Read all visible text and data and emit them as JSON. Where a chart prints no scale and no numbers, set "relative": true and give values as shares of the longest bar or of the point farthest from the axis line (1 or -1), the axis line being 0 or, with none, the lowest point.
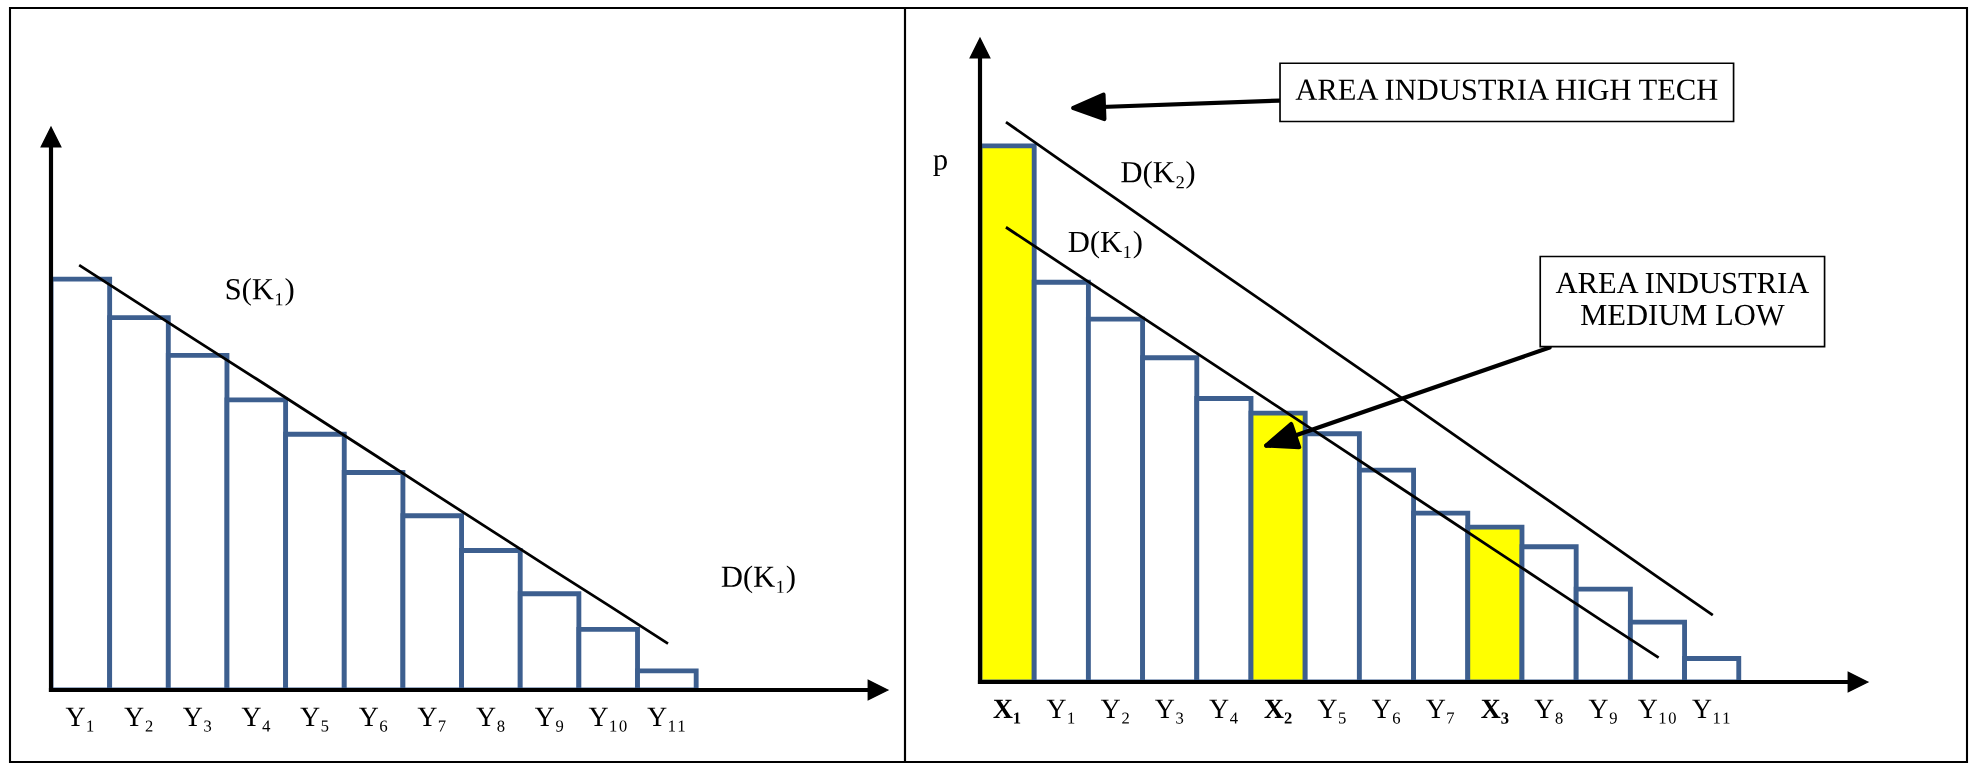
{
  "chart_data": [
    {
      "type": "bar",
      "relative": true,
      "categories": [
        "Y₁",
        "Y₂",
        "Y₃",
        "Y₄",
        "Y₅",
        "Y₆",
        "Y₇",
        "Y₈",
        "Y₉",
        "Y₁₀",
        "Y₁₁"
      ],
      "series": [
        {
          "color": "#3d5f8f",
          "colors": [
            "#ffffff",
            "#ffffff",
            "#ffffff",
            "#ffffff",
            "#ffffff",
            "#ffffff",
            "#ffffff",
            "#ffffff",
            "#ffffff",
            "#ffffff",
            "#ffffff"
          ],
          "values": [
            0.969,
            0.878,
            0.789,
            0.684,
            0.603,
            0.513,
            0.411,
            0.329,
            0.227,
            0.143,
            0.045
          ]
        },
        {
          "type": "line",
          "color": "#000000",
          "values": [
            1,
            0.911,
            0.822,
            0.734,
            0.645,
            0.556,
            0.466,
            0.377,
            0.288,
            0.2,
            0.111
          ]
        }
      ],
      "annotations": [
        "S(K₁)",
        "D(K₁)"
      ],
      "grid": false,
      "legend": false,
      "tick_labels": "x"
    },
    {
      "type": "bar",
      "relative": true,
      "ylabel": "p",
      "categories": [
        "X₁",
        "Y₁",
        "Y₂",
        "Y₃",
        "Y₄",
        "X₂",
        "Y₅",
        "Y₆",
        "Y₇",
        "X₃",
        "Y₈",
        "Y₉",
        "Y₁₀",
        "Y₁₁"
      ],
      "series": [
        {
          "color": "#3d5f8f",
          "colors": [
            "#ffff00",
            "#ffffff",
            "#ffffff",
            "#ffffff",
            "#ffffff",
            "#ffff00",
            "#ffffff",
            "#ffffff",
            "#ffffff",
            "#ffff00",
            "#ffffff",
            "#ffffff",
            "#ffffff",
            "#ffffff"
          ],
          "values": [
            0.959,
            0.715,
            0.649,
            0.58,
            0.507,
            0.481,
            0.444,
            0.379,
            0.302,
            0.277,
            0.242,
            0.166,
            0.107,
            0.042
          ]
        },
        {
          "type": "line",
          "name": "D(K₂)",
          "color": "#000000",
          "values": [
            1,
            0.932,
            0.865,
            0.797,
            0.729,
            0.662,
            0.594,
            0.527,
            0.459,
            0.391,
            0.324,
            0.256,
            0.188,
            0.121
          ]
        },
        {
          "type": "line",
          "name": "D(K₁)",
          "color": "#000000",
          "values": [
            0.812,
            0.748,
            0.684,
            0.62,
            0.556,
            0.492,
            0.428,
            0.364,
            0.3,
            0.236,
            0.172,
            0.108,
            0.045,
            null
          ]
        }
      ],
      "annotations": [
        "AREA INDUSTRIA HIGH TECH",
        "AREA INDUSTRIA\nMEDIUM LOW"
      ],
      "grid": false,
      "legend": false,
      "tick_labels": "x"
    }
  ]
}
